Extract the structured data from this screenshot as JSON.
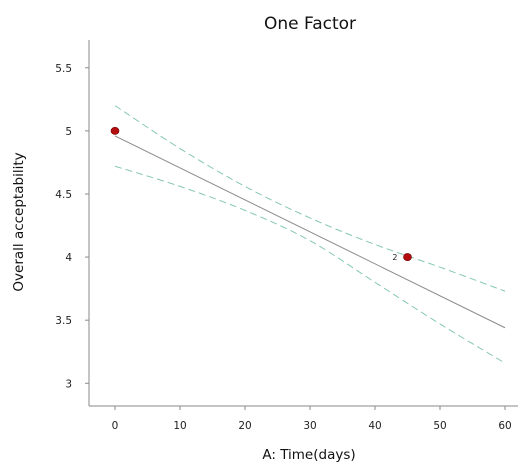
{
  "chart_data": {
    "type": "line",
    "title": "One Factor",
    "xlabel": "A: Time(days)",
    "ylabel": "Overall acceptability",
    "xlim": [
      -4,
      62
    ],
    "ylim": [
      2.82,
      5.72
    ],
    "xticks": [
      0,
      10,
      20,
      30,
      40,
      50,
      60
    ],
    "yticks": [
      3,
      3.5,
      4,
      4.5,
      5,
      5.5
    ],
    "xtick_labels": [
      "0",
      "10",
      "20",
      "30",
      "40",
      "50",
      "60"
    ],
    "ytick_labels": [
      "3",
      "3.5",
      "4",
      "4.5",
      "5",
      "5.5"
    ],
    "grid": false,
    "legend": "none",
    "fit_line": {
      "x": [
        0,
        60
      ],
      "y": [
        4.96,
        3.44
      ]
    },
    "confidence_band_upper": {
      "x": [
        0,
        10,
        20,
        30,
        40,
        50,
        60
      ],
      "y": [
        5.2,
        4.86,
        4.56,
        4.31,
        4.1,
        3.92,
        3.73
      ]
    },
    "confidence_band_lower": {
      "x": [
        0,
        10,
        20,
        30,
        40,
        50,
        60
      ],
      "y": [
        4.72,
        4.56,
        4.37,
        4.13,
        3.8,
        3.47,
        3.16
      ]
    },
    "points": [
      {
        "x": 0,
        "y": 5,
        "label": ""
      },
      {
        "x": 45,
        "y": 4,
        "label": "2"
      }
    ],
    "colors": {
      "fit_line": "#8c8c8c",
      "band": "#86c8b0",
      "point": "#b50d0d",
      "point_edge": "#6a0000",
      "axis": "#8a8a8a",
      "text": "#111111"
    }
  }
}
